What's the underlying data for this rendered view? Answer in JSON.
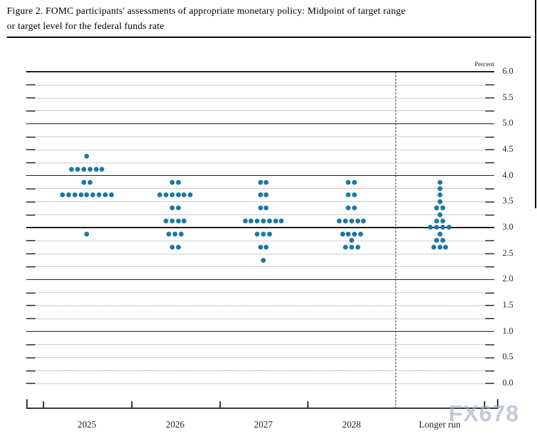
{
  "document": {
    "title_line1": "Figure 2. FOMC participants' assessments of appropriate monetary policy: Midpoint of target range",
    "title_line2": "or target level for the federal funds rate"
  },
  "watermark_text": "FX678",
  "chart_data": {
    "type": "scatter",
    "subtype": "fomc-dot-plot",
    "title": "FOMC participants' assessments of appropriate monetary policy: Midpoint of target range or target level for the federal funds rate",
    "unit_label": "Percent",
    "ylim": [
      0.0,
      6.0
    ],
    "ytick_labels": [
      "6.0",
      "5.5",
      "5.0",
      "4.5",
      "4.0",
      "3.5",
      "3.0",
      "2.5",
      "2.0",
      "1.5",
      "1.0",
      "0.5",
      "0.0"
    ],
    "gridline_step": 0.25,
    "solid_gridlines": [
      6.0,
      5.0,
      4.0,
      3.0,
      2.0,
      1.0
    ],
    "grid_on": true,
    "legend_position": "none",
    "categories": [
      "2025",
      "2026",
      "2027",
      "2028",
      "Longer run"
    ],
    "separator_before_category": "Longer run",
    "dots": [
      {
        "category": "2025",
        "distribution": [
          {
            "value": 4.375,
            "count": 1
          },
          {
            "value": 4.125,
            "count": 6
          },
          {
            "value": 3.875,
            "count": 2
          },
          {
            "value": 3.625,
            "count": 9
          },
          {
            "value": 2.875,
            "count": 1
          }
        ]
      },
      {
        "category": "2026",
        "distribution": [
          {
            "value": 3.875,
            "count": 2
          },
          {
            "value": 3.625,
            "count": 6
          },
          {
            "value": 3.375,
            "count": 2
          },
          {
            "value": 3.125,
            "count": 4
          },
          {
            "value": 2.875,
            "count": 3
          },
          {
            "value": 2.625,
            "count": 2
          }
        ]
      },
      {
        "category": "2027",
        "distribution": [
          {
            "value": 3.875,
            "count": 2
          },
          {
            "value": 3.625,
            "count": 2
          },
          {
            "value": 3.375,
            "count": 2
          },
          {
            "value": 3.125,
            "count": 7
          },
          {
            "value": 2.875,
            "count": 3
          },
          {
            "value": 2.625,
            "count": 2
          },
          {
            "value": 2.375,
            "count": 1
          }
        ]
      },
      {
        "category": "2028",
        "distribution": [
          {
            "value": 3.875,
            "count": 2
          },
          {
            "value": 3.625,
            "count": 2
          },
          {
            "value": 3.375,
            "count": 2
          },
          {
            "value": 3.125,
            "count": 5
          },
          {
            "value": 2.875,
            "count": 4
          },
          {
            "value": 2.75,
            "count": 1
          },
          {
            "value": 2.625,
            "count": 3
          }
        ]
      },
      {
        "category": "Longer run",
        "distribution": [
          {
            "value": 3.875,
            "count": 1
          },
          {
            "value": 3.75,
            "count": 1
          },
          {
            "value": 3.625,
            "count": 1
          },
          {
            "value": 3.5,
            "count": 1
          },
          {
            "value": 3.375,
            "count": 2
          },
          {
            "value": 3.25,
            "count": 1
          },
          {
            "value": 3.125,
            "count": 2
          },
          {
            "value": 3.0,
            "count": 4
          },
          {
            "value": 2.875,
            "count": 1
          },
          {
            "value": 2.75,
            "count": 2
          },
          {
            "value": 2.625,
            "count": 3
          }
        ]
      }
    ],
    "colors": {
      "dot": "#1878a8",
      "solid_grid": "#1a1a1a",
      "dotted_grid": "#9a9a9a",
      "axis": "#333333",
      "text": "#111111",
      "watermark": "#a0acbe"
    }
  }
}
